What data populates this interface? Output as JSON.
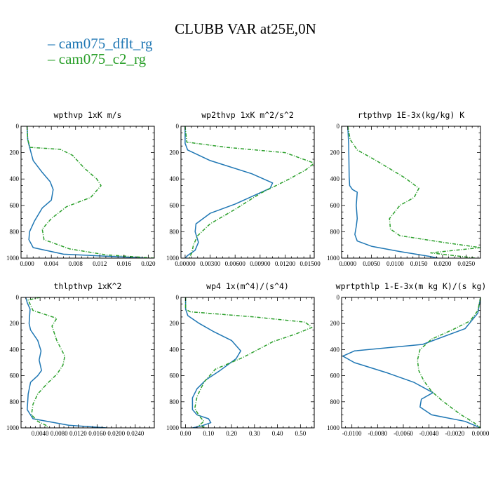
{
  "title": "CLUBB VAR at25E,0N",
  "legend": [
    {
      "label": "cam075_dflt_rg",
      "color": "#1f77b4"
    },
    {
      "label": "cam075_c2_rg",
      "color": "#2ca02c"
    }
  ],
  "chart_data": [
    {
      "type": "line",
      "title": "wpthvp   1xK m/s",
      "xlim": [
        -0.001,
        0.021
      ],
      "ylim": [
        1000,
        0
      ],
      "xticks": [
        "0.000",
        "0.004",
        "0.008",
        "0.012",
        "0.016",
        "0.020"
      ],
      "xtick_values": [
        0.0,
        0.004,
        0.008,
        0.012,
        0.016,
        0.02
      ],
      "yticks": [
        0,
        200,
        400,
        600,
        800,
        1000
      ],
      "series": [
        {
          "name": "cam075_dflt_rg",
          "x": [
            0.0,
            0.0001,
            0.0003,
            0.001,
            0.0025,
            0.0038,
            0.0043,
            0.004,
            0.0025,
            0.0012,
            0.0004,
            0.0003,
            0.001,
            0.006,
            0.02
          ],
          "y": [
            0,
            100,
            140,
            260,
            350,
            420,
            480,
            560,
            620,
            720,
            800,
            860,
            920,
            970,
            1000
          ]
        },
        {
          "name": "cam075_c2_rg",
          "x": [
            0.0,
            0.0001,
            0.0005,
            0.0055,
            0.0075,
            0.0095,
            0.0115,
            0.0122,
            0.0105,
            0.0065,
            0.004,
            0.0025,
            0.0028,
            0.007,
            0.013,
            0.021
          ],
          "y": [
            0,
            100,
            160,
            175,
            220,
            320,
            400,
            450,
            540,
            610,
            700,
            780,
            860,
            930,
            975,
            1000
          ]
        }
      ]
    },
    {
      "type": "line",
      "title": "wp2thvp   1xK m^2/s^2",
      "xlim": [
        -0.0005,
        0.0155
      ],
      "ylim": [
        1000,
        0
      ],
      "xticks": [
        "0.00000",
        "0.00300",
        "0.00600",
        "0.00900",
        "0.01200",
        "0.01500"
      ],
      "xtick_values": [
        0.0,
        0.003,
        0.006,
        0.009,
        0.012,
        0.015
      ],
      "yticks": [
        0,
        200,
        400,
        600,
        800,
        1000
      ],
      "series": [
        {
          "name": "cam075_dflt_rg",
          "x": [
            0.0,
            0.0,
            0.0003,
            0.003,
            0.008,
            0.0105,
            0.0102,
            0.006,
            0.003,
            0.0013,
            0.0012,
            0.0016,
            0.0012,
            0.0003,
            0.0
          ],
          "y": [
            0,
            130,
            180,
            260,
            360,
            430,
            470,
            590,
            660,
            740,
            800,
            880,
            940,
            980,
            1000
          ]
        },
        {
          "name": "cam075_c2_rg",
          "x": [
            0.0,
            0.0002,
            0.005,
            0.012,
            0.0155,
            0.0145,
            0.0125,
            0.009,
            0.006,
            0.003,
            0.0015,
            0.001,
            0.0008,
            0.0005
          ],
          "y": [
            0,
            120,
            160,
            200,
            280,
            330,
            400,
            510,
            630,
            740,
            830,
            900,
            960,
            1000
          ]
        }
      ]
    },
    {
      "type": "line",
      "title": "rtpthvp   1E-3x(kg/kg) K",
      "xlim": [
        -0.0013,
        0.028
      ],
      "ylim": [
        1000,
        0
      ],
      "xticks": [
        "0.0000",
        "0.0050",
        "0.0100",
        "0.0150",
        "0.0200",
        "0.0250"
      ],
      "xtick_values": [
        0.0,
        0.005,
        0.01,
        0.015,
        0.02,
        0.025
      ],
      "yticks": [
        0,
        200,
        400,
        600,
        800,
        1000
      ],
      "series": [
        {
          "name": "cam075_dflt_rg",
          "x": [
            0.0,
            0.0002,
            0.0003,
            0.0004,
            0.001,
            0.002,
            0.0018,
            0.002,
            0.0018,
            0.0015,
            0.002,
            0.005,
            0.011,
            0.017,
            0.019
          ],
          "y": [
            0,
            140,
            380,
            450,
            480,
            500,
            600,
            700,
            760,
            820,
            870,
            910,
            950,
            985,
            1000
          ]
        },
        {
          "name": "cam075_c2_rg",
          "x": [
            0.0,
            0.0005,
            0.002,
            0.006,
            0.012,
            0.015,
            0.014,
            0.011,
            0.0088,
            0.009,
            0.011,
            0.02,
            0.028,
            0.0175,
            0.027
          ],
          "y": [
            0,
            100,
            180,
            260,
            390,
            470,
            540,
            600,
            700,
            780,
            830,
            880,
            920,
            960,
            1000
          ]
        }
      ]
    },
    {
      "type": "line",
      "title": "thlpthvp   1xK^2",
      "xlim": [
        0.0,
        0.028
      ],
      "ylim": [
        1000,
        0
      ],
      "xticks": [
        "0.0040",
        "0.0080",
        "0.0120",
        "0.0160",
        "0.0200",
        "0.0240"
      ],
      "xtick_values": [
        0.004,
        0.008,
        0.012,
        0.016,
        0.02,
        0.024
      ],
      "yticks": [
        0,
        200,
        400,
        600,
        800,
        1000
      ],
      "series": [
        {
          "name": "cam075_dflt_rg",
          "x": [
            0.001,
            0.0013,
            0.0019,
            0.0017,
            0.002,
            0.0035,
            0.0042,
            0.0038,
            0.0043,
            0.0035,
            0.002,
            0.0015,
            0.0013,
            0.0025,
            0.01,
            0.018
          ],
          "y": [
            0,
            40,
            90,
            200,
            250,
            330,
            410,
            480,
            560,
            600,
            650,
            740,
            860,
            930,
            980,
            1000
          ]
        },
        {
          "name": "cam075_c2_rg",
          "x": [
            0.004,
            0.0015,
            0.0025,
            0.0075,
            0.0065,
            0.0075,
            0.0092,
            0.0088,
            0.0075,
            0.0055,
            0.0035,
            0.0025,
            0.0022,
            0.0035,
            0.0055,
            0.0055
          ],
          "y": [
            0,
            20,
            100,
            160,
            220,
            330,
            450,
            520,
            590,
            660,
            740,
            820,
            900,
            950,
            985,
            1000
          ]
        }
      ]
    },
    {
      "type": "line",
      "title": "wp4   1x(m^4)/(s^4)",
      "xlim": [
        -0.02,
        0.56
      ],
      "ylim": [
        1000,
        0
      ],
      "xticks": [
        "0.00",
        "0.10",
        "0.20",
        "0.30",
        "0.40",
        "0.50"
      ],
      "xtick_values": [
        0.0,
        0.1,
        0.2,
        0.3,
        0.4,
        0.5
      ],
      "yticks": [
        0,
        200,
        400,
        600,
        800,
        1000
      ],
      "series": [
        {
          "name": "cam075_dflt_rg",
          "x": [
            0.0,
            0.0,
            0.01,
            0.06,
            0.12,
            0.2,
            0.24,
            0.22,
            0.15,
            0.09,
            0.05,
            0.03,
            0.03,
            0.05,
            0.1,
            0.11,
            0.07,
            0.03
          ],
          "y": [
            0,
            90,
            140,
            200,
            260,
            330,
            410,
            470,
            560,
            630,
            700,
            770,
            860,
            900,
            930,
            960,
            985,
            1000
          ]
        },
        {
          "name": "cam075_c2_rg",
          "x": [
            0.0,
            0.0,
            0.02,
            0.3,
            0.52,
            0.55,
            0.48,
            0.38,
            0.25,
            0.13,
            0.08,
            0.05,
            0.04,
            0.06,
            0.08,
            0.06,
            0.09
          ],
          "y": [
            0,
            90,
            110,
            150,
            190,
            230,
            280,
            340,
            460,
            550,
            650,
            760,
            850,
            910,
            950,
            980,
            1000
          ]
        }
      ]
    },
    {
      "type": "line",
      "title": "wprtpthlp   1-E-3x(m kg K)/(s kg)",
      "xlim": [
        -0.0108,
        0.0
      ],
      "ylim": [
        1000,
        0
      ],
      "xticks": [
        "-0.0100",
        "-0.0080",
        "-0.0060",
        "-0.0040",
        "-0.0020",
        "0.0000"
      ],
      "xtick_values": [
        -0.01,
        -0.008,
        -0.006,
        -0.004,
        -0.002,
        0.0
      ],
      "yticks": [
        0,
        200,
        400,
        600,
        800,
        1000
      ],
      "series": [
        {
          "name": "cam075_dflt_rg",
          "x": [
            0.0,
            -0.0002,
            -0.0012,
            -0.0045,
            -0.0098,
            -0.0107,
            -0.0098,
            -0.0072,
            -0.0052,
            -0.0037,
            -0.0046,
            -0.0047,
            -0.0038,
            -0.0012,
            0.0
          ],
          "y": [
            0,
            120,
            240,
            360,
            410,
            450,
            500,
            580,
            650,
            730,
            780,
            840,
            900,
            950,
            1000
          ]
        },
        {
          "name": "cam075_c2_rg",
          "x": [
            0.0,
            -0.0002,
            -0.0008,
            -0.002,
            -0.0038,
            -0.0047,
            -0.0049,
            -0.0048,
            -0.0044,
            -0.0038,
            -0.003,
            -0.0022,
            -0.0015,
            -0.0005,
            0.0
          ],
          "y": [
            0,
            100,
            180,
            240,
            320,
            400,
            480,
            560,
            640,
            720,
            790,
            850,
            900,
            960,
            1000
          ]
        }
      ]
    }
  ]
}
